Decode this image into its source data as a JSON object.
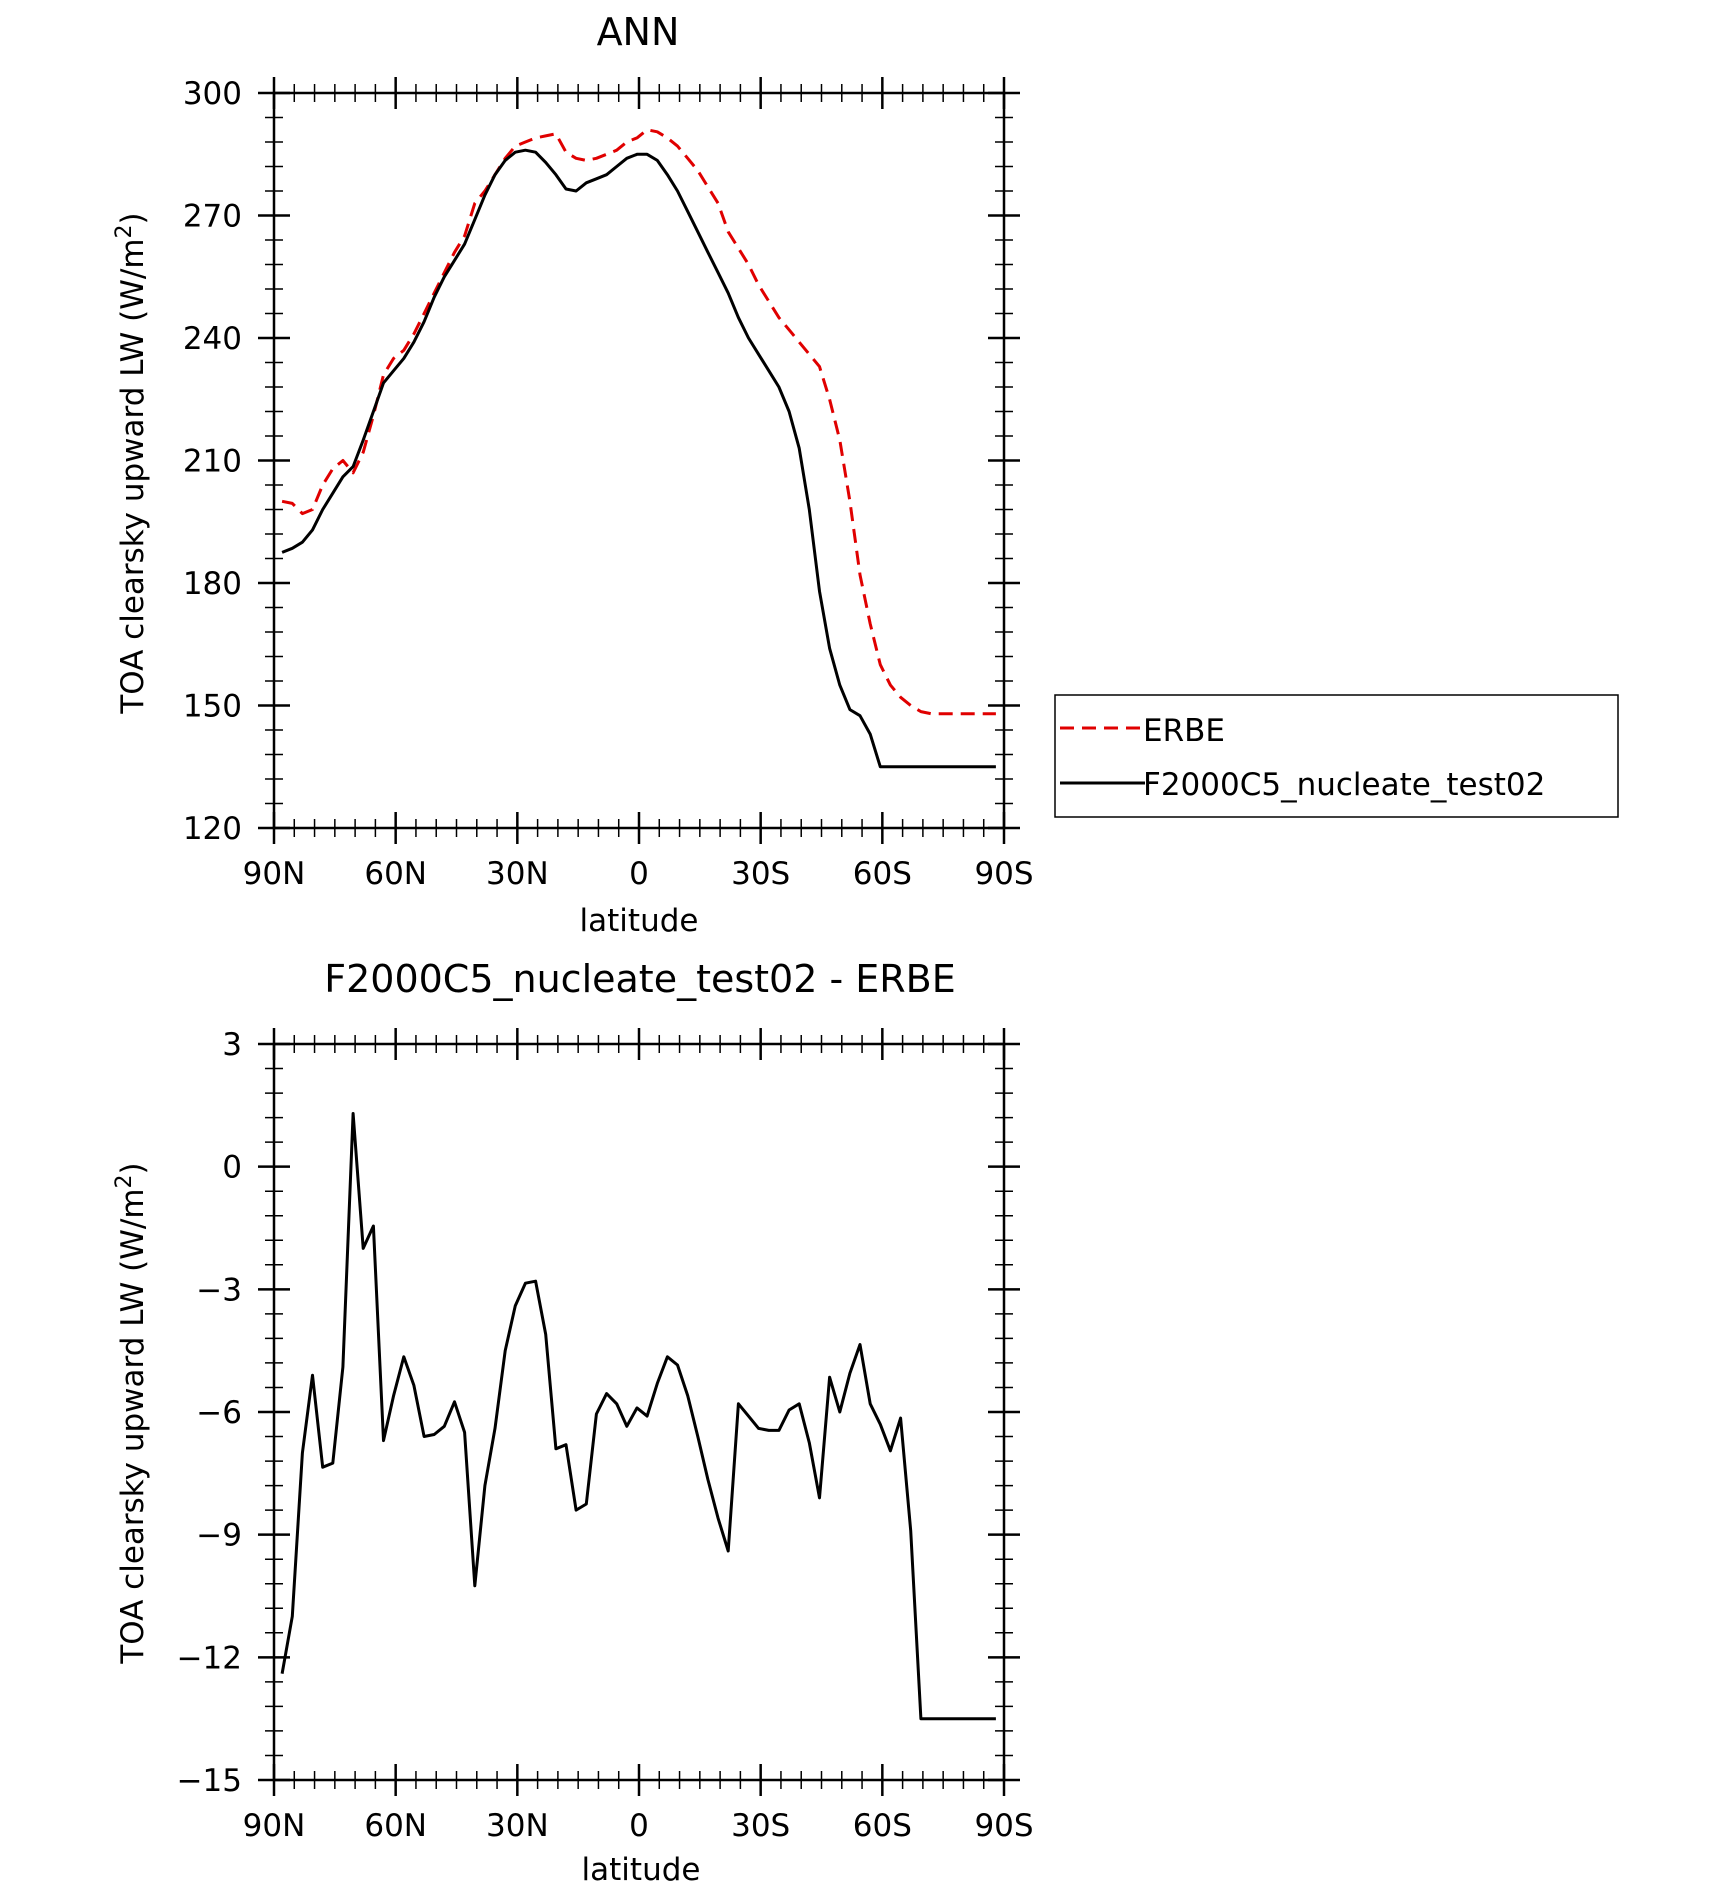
{
  "chart_data": [
    {
      "type": "line",
      "title": "ANN",
      "xlabel": "latitude",
      "ylabel": "TOA clearsky upward LW (W/m",
      "ylabel_sup": "2",
      "ylabel_close": ")",
      "xlim": [
        90,
        -90
      ],
      "ylim": [
        120,
        300
      ],
      "xticks": [
        90,
        60,
        30,
        0,
        -30,
        -60,
        -90
      ],
      "xticklabels": [
        "90N",
        "60N",
        "30N",
        "0",
        "30S",
        "60S",
        "90S"
      ],
      "yticks": [
        120,
        150,
        180,
        210,
        240,
        270,
        300
      ],
      "yticklabels": [
        "120",
        "150",
        "180",
        "210",
        "240",
        "270",
        "300"
      ],
      "grid": false,
      "legend_position": "right",
      "series": [
        {
          "name": "ERBE",
          "color": "#e00000",
          "dash": "dashed",
          "x": [
            88,
            85.5,
            83,
            80.5,
            78,
            75.5,
            73,
            70.5,
            68,
            65.5,
            63,
            60.5,
            58,
            55.5,
            53,
            50.5,
            48,
            45.5,
            43,
            40.5,
            38,
            35.5,
            33,
            30.5,
            28,
            25.5,
            23,
            20.5,
            18,
            15.5,
            13,
            10.5,
            8,
            5.5,
            3,
            0.5,
            -2,
            -4.5,
            -7,
            -9.5,
            -12,
            -14.5,
            -17,
            -19.5,
            -22,
            -24.5,
            -27,
            -29.5,
            -32,
            -34.5,
            -37,
            -39.5,
            -42,
            -44.5,
            -47,
            -49.5,
            -52,
            -54.5,
            -57,
            -59.5,
            -62,
            -64.5,
            -67,
            -69.5,
            -72,
            -74.5,
            -77,
            -79.5,
            -82,
            -84.5,
            -87,
            -88
          ],
          "y": [
            200,
            199.5,
            197,
            198,
            204,
            208,
            210,
            207,
            212,
            221,
            231,
            235,
            237,
            241,
            246,
            251,
            256,
            261,
            265,
            273,
            276,
            280,
            284,
            287,
            288,
            289,
            289.5,
            290,
            285.5,
            284,
            283.5,
            284,
            285,
            286,
            288,
            289,
            291,
            290.5,
            289,
            287,
            284,
            281,
            277,
            273,
            266,
            262,
            258,
            253,
            249,
            245,
            242,
            239,
            236,
            233,
            225,
            215,
            200,
            182,
            170,
            160,
            155,
            152,
            150,
            148.5,
            148,
            148,
            148,
            148,
            148,
            148,
            148,
            148
          ]
        },
        {
          "name": "F2000C5_nucleate_test02",
          "color": "#000000",
          "dash": "solid",
          "x": [
            88,
            85.5,
            83,
            80.5,
            78,
            75.5,
            73,
            70.5,
            68,
            65.5,
            63,
            60.5,
            58,
            55.5,
            53,
            50.5,
            48,
            45.5,
            43,
            40.5,
            38,
            35.5,
            33,
            30.5,
            28,
            25.5,
            23,
            20.5,
            18,
            15.5,
            13,
            10.5,
            8,
            5.5,
            3,
            0.5,
            -2,
            -4.5,
            -7,
            -9.5,
            -12,
            -14.5,
            -17,
            -19.5,
            -22,
            -24.5,
            -27,
            -29.5,
            -32,
            -34.5,
            -37,
            -39.5,
            -42,
            -44.5,
            -47,
            -49.5,
            -52,
            -54.5,
            -57,
            -59.5,
            -62,
            -64.5,
            -67,
            -69.5,
            -72,
            -74.5,
            -77,
            -79.5,
            -82,
            -84.5,
            -87,
            -88
          ],
          "y": [
            187.5,
            188.5,
            190,
            193,
            198,
            202,
            206,
            208.5,
            215,
            222,
            229,
            232,
            235,
            239,
            244,
            250,
            255,
            259,
            263,
            269,
            275,
            280,
            283.5,
            285.5,
            286,
            285.5,
            283,
            280,
            276.5,
            276,
            278,
            279,
            280,
            282,
            284,
            285,
            285,
            283.5,
            280,
            276,
            271,
            266,
            261,
            256,
            251,
            245,
            240,
            236,
            232,
            228,
            222,
            213,
            198,
            178,
            164,
            155,
            149,
            147.5,
            143,
            135,
            135,
            135,
            135,
            135,
            135,
            135,
            135,
            135,
            135,
            135,
            135,
            135
          ]
        }
      ]
    },
    {
      "type": "line",
      "title": "F2000C5_nucleate_test02 - ERBE",
      "xlabel": "latitude",
      "ylabel": "TOA clearsky upward LW (W/m",
      "ylabel_sup": "2",
      "ylabel_close": ")",
      "xlim": [
        90,
        -90
      ],
      "ylim": [
        -15,
        3
      ],
      "xticks": [
        90,
        60,
        30,
        0,
        -30,
        -60,
        -90
      ],
      "xticklabels": [
        "90N",
        "60N",
        "30N",
        "0",
        "30S",
        "60S",
        "90S"
      ],
      "yticks": [
        -15,
        -12,
        -9,
        -6,
        -3,
        0,
        3
      ],
      "yticklabels": [
        "−15",
        "−12",
        "−9",
        "−6",
        "−3",
        "0",
        "3"
      ],
      "grid": false,
      "series": [
        {
          "color": "#000000",
          "dash": "solid",
          "x": [
            88,
            85.5,
            83,
            80.5,
            78,
            75.5,
            73,
            70.5,
            68,
            65.5,
            63,
            60.5,
            58,
            55.5,
            53,
            50.5,
            48,
            45.5,
            43,
            40.5,
            38,
            35.5,
            33,
            30.5,
            28,
            25.5,
            23,
            20.5,
            18,
            15.5,
            13,
            10.5,
            8,
            5.5,
            3,
            0.5,
            -2,
            -4.5,
            -7,
            -9.5,
            -12,
            -14.5,
            -17,
            -19.5,
            -22,
            -24.5,
            -27,
            -29.5,
            -32,
            -34.5,
            -37,
            -39.5,
            -42,
            -44.5,
            -47,
            -49.5,
            -52,
            -54.5,
            -57,
            -59.5,
            -62,
            -64.5,
            -67,
            -69.5,
            -72,
            -74.5,
            -77,
            -79.5,
            -82,
            -84.5,
            -87,
            -88
          ],
          "y": [
            -12.4,
            -11,
            -7,
            -5.1,
            -7.35,
            -7.25,
            -4.9,
            1.3,
            -2,
            -1.45,
            -6.7,
            -5.6,
            -4.65,
            -5.35,
            -6.6,
            -6.55,
            -6.35,
            -5.75,
            -6.5,
            -10.25,
            -7.8,
            -6.4,
            -4.5,
            -3.4,
            -2.85,
            -2.8,
            -4.1,
            -6.9,
            -6.8,
            -8.4,
            -8.25,
            -6.05,
            -5.55,
            -5.8,
            -6.35,
            -5.9,
            -6.1,
            -5.3,
            -4.65,
            -4.85,
            -5.6,
            -6.6,
            -7.65,
            -8.6,
            -9.4,
            -5.8,
            -6.1,
            -6.4,
            -6.45,
            -6.45,
            -5.95,
            -5.8,
            -6.75,
            -8.1,
            -5.15,
            -6,
            -5.05,
            -4.35,
            -5.8,
            -6.3,
            -6.95,
            -6.15,
            -8.9,
            -13.5,
            -13.5,
            -13.5,
            -13.5,
            -13.5,
            -13.5,
            -13.5,
            -13.5,
            -13.5
          ]
        }
      ]
    }
  ]
}
